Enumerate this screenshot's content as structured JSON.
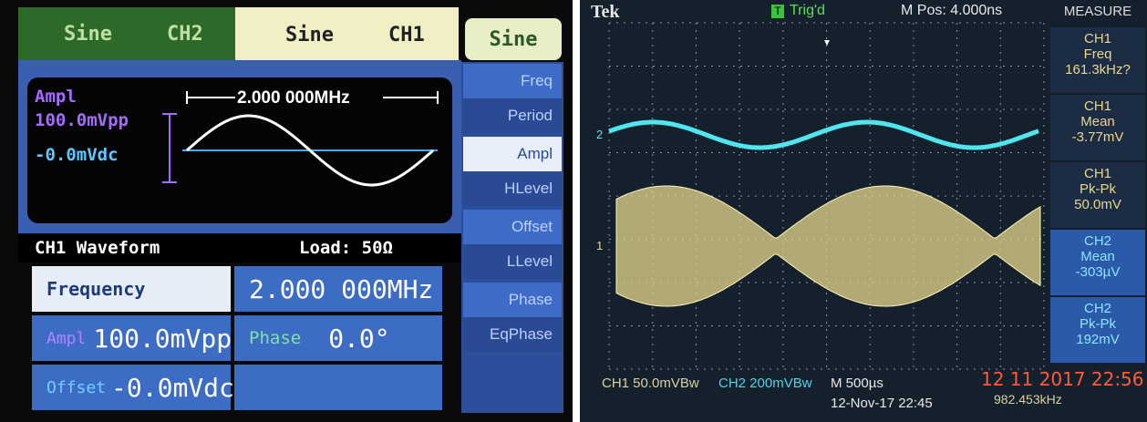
{
  "function_generator": {
    "tabs": [
      {
        "wave": "Sine",
        "channel": "CH2"
      },
      {
        "wave": "Sine",
        "channel": "CH1"
      }
    ],
    "wave_button": "Sine",
    "menu": [
      "Freq",
      "Period",
      "Ampl",
      "HLevel",
      "Offset",
      "LLevel",
      "Phase",
      "EqPhase"
    ],
    "preview": {
      "ampl_label": "Ampl",
      "ampl_value": "100.0mVpp",
      "offset_value": "-0.0mVdc",
      "frequency": "2.000 000MHz"
    },
    "status": {
      "title": "CH1 Waveform",
      "load": "Load: 50Ω"
    },
    "params": [
      {
        "label": "Frequency",
        "value": "2.000 000MHz"
      },
      {
        "label": "Ampl",
        "value": "100.0mVpp"
      },
      {
        "label": "Phase",
        "value": "0.0°"
      },
      {
        "label": "Offset",
        "value": "-0.0mVdc"
      }
    ]
  },
  "oscilloscope": {
    "brand": "Tek",
    "trigger": "Trig'd",
    "trigger_icon": "T",
    "position": "M Pos: 4.000ns",
    "menu_title": "MEASURE",
    "measurements": [
      {
        "channel": "CH1",
        "name": "Freq",
        "value": "161.3kHz?"
      },
      {
        "channel": "CH1",
        "name": "Mean",
        "value": "-3.77mV"
      },
      {
        "channel": "CH1",
        "name": "Pk-Pk",
        "value": "50.0mV"
      },
      {
        "channel": "CH2",
        "name": "Mean",
        "value": "-303µV"
      },
      {
        "channel": "CH2",
        "name": "Pk-Pk",
        "value": "192mV"
      }
    ],
    "channel_markers": [
      "2",
      "1"
    ],
    "footer": {
      "ch1": "CH1  50.0mVBw",
      "ch2": "CH2  200mVBw",
      "timebase": "M 500µs",
      "date": "12-Nov-17 22:45",
      "trigger_freq": "982.453kHz"
    },
    "photo_stamp": "12 11 2017 22:56"
  }
}
